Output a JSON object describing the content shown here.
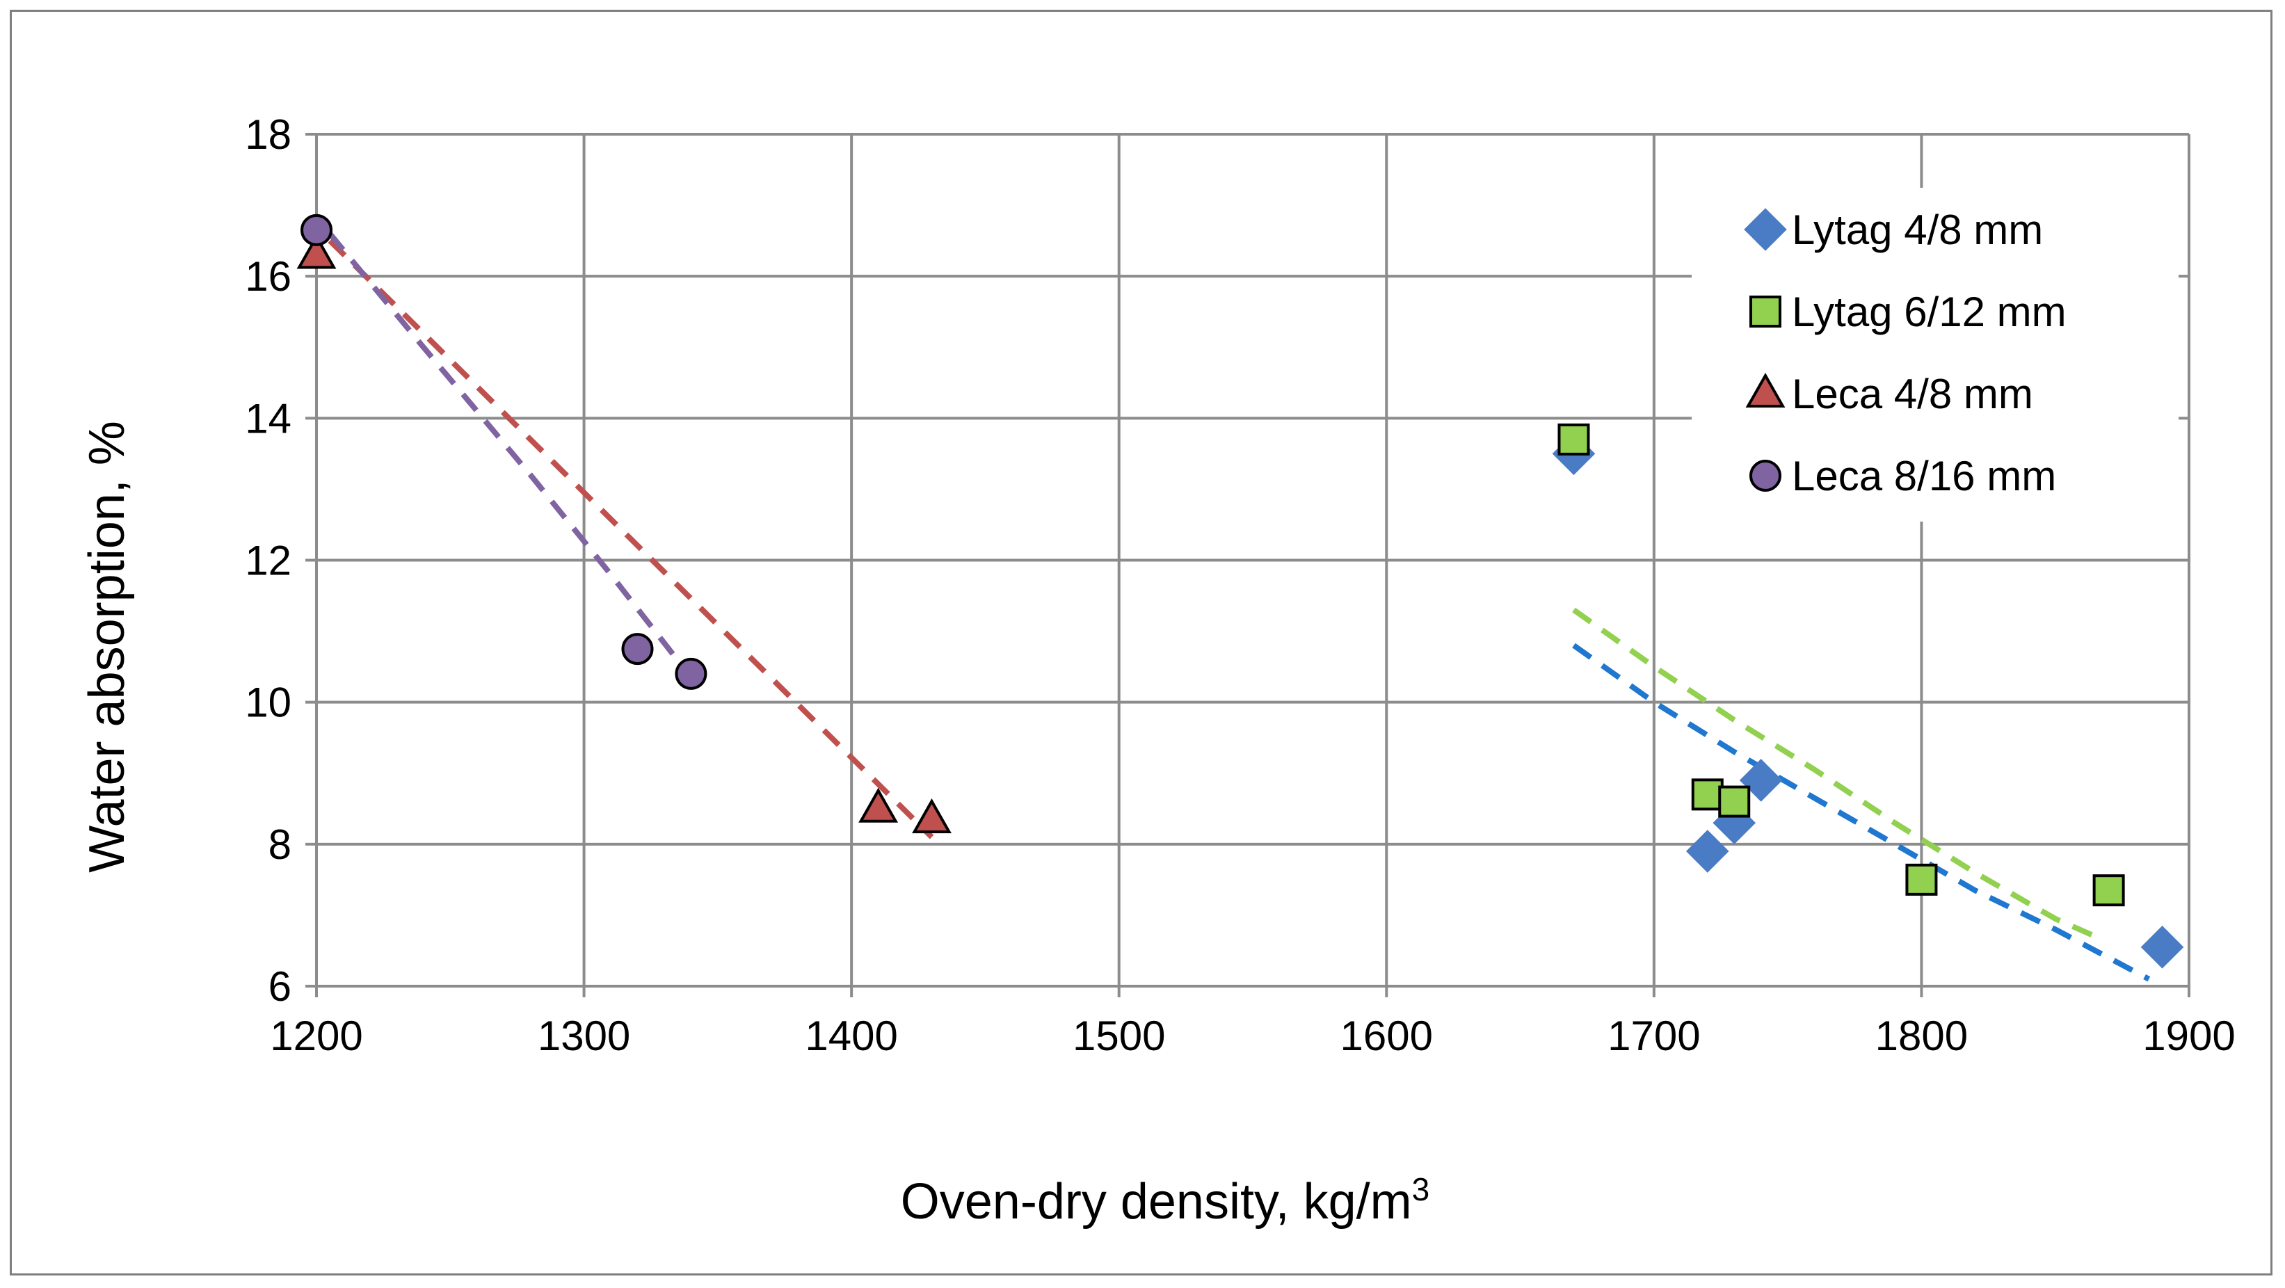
{
  "chart_data": {
    "type": "scatter",
    "title": "",
    "xlabel": "Oven-dry density,  kg/m",
    "xlabel_superscript": "3",
    "ylabel": "Water absorption,  %",
    "xlim": [
      1200,
      1900
    ],
    "ylim": [
      6,
      18
    ],
    "xticks": [
      1200,
      1300,
      1400,
      1500,
      1600,
      1700,
      1800,
      1900
    ],
    "yticks": [
      6,
      8,
      10,
      12,
      14,
      16,
      18
    ],
    "grid": true,
    "legend_position": "top-right",
    "series": [
      {
        "name": "Lytag 4/8 mm",
        "marker": "diamond",
        "color": "#4a7cc5",
        "points": [
          [
            1670,
            13.5
          ],
          [
            1720,
            7.9
          ],
          [
            1730,
            8.3
          ],
          [
            1740,
            8.9
          ],
          [
            1890,
            6.55
          ]
        ],
        "trend": {
          "color": "#1f77d0",
          "points": [
            [
              1670,
              10.8
            ],
            [
              1700,
              10.0
            ],
            [
              1730,
              9.3
            ],
            [
              1760,
              8.65
            ],
            [
              1790,
              8.0
            ],
            [
              1820,
              7.35
            ],
            [
              1850,
              6.8
            ],
            [
              1885,
              6.1
            ]
          ]
        }
      },
      {
        "name": "Lytag 6/12 mm",
        "marker": "square",
        "color": "#92d050",
        "points": [
          [
            1670,
            13.7
          ],
          [
            1720,
            8.7
          ],
          [
            1730,
            8.6
          ],
          [
            1800,
            7.5
          ],
          [
            1870,
            7.35
          ]
        ],
        "trend": {
          "color": "#92d050",
          "points": [
            [
              1670,
              11.3
            ],
            [
              1700,
              10.5
            ],
            [
              1730,
              9.75
            ],
            [
              1760,
              9.05
            ],
            [
              1790,
              8.3
            ],
            [
              1820,
              7.6
            ],
            [
              1850,
              6.95
            ],
            [
              1865,
              6.7
            ]
          ]
        }
      },
      {
        "name": "Leca 4/8 mm",
        "marker": "triangle",
        "color": "#c0504d",
        "points": [
          [
            1200,
            16.3
          ],
          [
            1410,
            8.5
          ],
          [
            1430,
            8.35
          ]
        ],
        "trend": {
          "color": "#c0504d",
          "points": [
            [
              1205,
              16.5
            ],
            [
              1430,
              8.1
            ]
          ]
        }
      },
      {
        "name": "Leca 8/16 mm",
        "marker": "circle",
        "color": "#8064a2",
        "points": [
          [
            1200,
            16.65
          ],
          [
            1320,
            10.75
          ],
          [
            1340,
            10.4
          ]
        ],
        "trend": {
          "color": "#8064a2",
          "points": [
            [
              1205,
              16.6
            ],
            [
              1240,
              15.0
            ],
            [
              1280,
              13.2
            ],
            [
              1310,
              11.8
            ],
            [
              1340,
              10.35
            ]
          ]
        }
      }
    ]
  }
}
